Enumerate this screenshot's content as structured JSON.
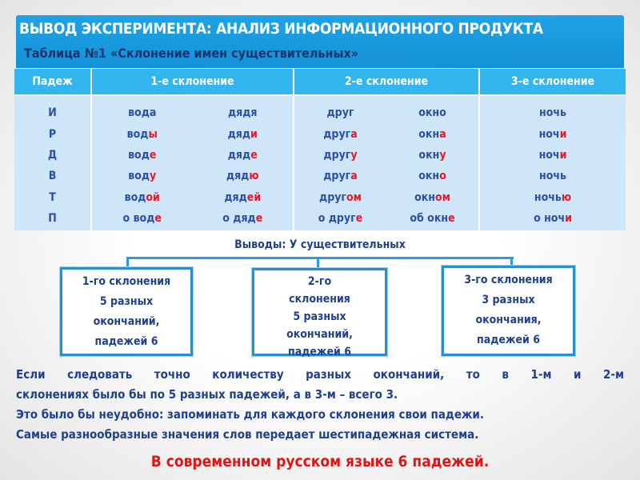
{
  "header": {
    "title": "ВЫВОД ЭКСПЕРИМЕНТА: АНАЛИЗ ИНФОРМАЦИОННОГО ПРОДУКТА",
    "subtitle": "Таблица №1 «Склонение имен существительных»"
  },
  "table": {
    "columns": [
      "Падеж",
      "1-е склонение",
      "2-е склонение",
      "3-е склонение"
    ],
    "cases": [
      "И",
      "Р",
      "Д",
      "В",
      "Т",
      "П"
    ],
    "decl1": [
      [
        {
          "s": "вода",
          "e": ""
        },
        {
          "s": "дядя",
          "e": ""
        }
      ],
      [
        {
          "s": "вод",
          "e": "ы"
        },
        {
          "s": "дяд",
          "e": "и"
        }
      ],
      [
        {
          "s": "вод",
          "e": "е"
        },
        {
          "s": "дяд",
          "e": "е"
        }
      ],
      [
        {
          "s": "вод",
          "e": "у"
        },
        {
          "s": "дяд",
          "e": "ю"
        }
      ],
      [
        {
          "s": "вод",
          "e": "ой"
        },
        {
          "s": "дяд",
          "e": "ей"
        }
      ],
      [
        {
          "s": "о вод",
          "e": "е"
        },
        {
          "s": "о дяд",
          "e": "е"
        }
      ]
    ],
    "decl2": [
      [
        {
          "s": "друг",
          "e": ""
        },
        {
          "s": "окно",
          "e": ""
        }
      ],
      [
        {
          "s": "друг",
          "e": "а"
        },
        {
          "s": "окн",
          "e": "а"
        }
      ],
      [
        {
          "s": "друг",
          "e": "у"
        },
        {
          "s": "окн",
          "e": "у"
        }
      ],
      [
        {
          "s": "друг",
          "e": "а"
        },
        {
          "s": "окн",
          "e": "о"
        }
      ],
      [
        {
          "s": "друг",
          "e": "ом"
        },
        {
          "s": "окн",
          "e": "ом"
        }
      ],
      [
        {
          "s": "о друг",
          "e": "е"
        },
        {
          "s": "об окн",
          "e": "е"
        }
      ]
    ],
    "decl3": [
      [
        {
          "s": "ночь",
          "e": ""
        }
      ],
      [
        {
          "s": "ноч",
          "e": "и"
        }
      ],
      [
        {
          "s": "ноч",
          "e": "и"
        }
      ],
      [
        {
          "s": "ночь",
          "e": ""
        }
      ],
      [
        {
          "s": "ночь",
          "e": "ю"
        }
      ],
      [
        {
          "s": "о ноч",
          "e": "и"
        }
      ]
    ]
  },
  "conclusions": {
    "title": "Выводы: У существительных",
    "boxes": [
      [
        "1-го склонения",
        "5 разных",
        "окончаний,",
        "падежей 6"
      ],
      [
        "2-го",
        "склонения",
        "5 разных",
        "окончаний,",
        "падежей 6"
      ],
      [
        "3-го склонения",
        "3 разных",
        "окончания,",
        "падежей 6"
      ]
    ]
  },
  "paragraph": [
    "Если следовать точно количеству разных окончаний, то в 1-м и 2-м",
    "склонениях было бы по 5 разных падежей, а в 3-м – всего 3.",
    "Это было бы неудобно: запоминать для каждого склонения свои падежи.",
    "Самые разнообразные значения слов передает шестипадежная система."
  ],
  "final": "В современном русском языке 6 падежей.",
  "colors": {
    "header": "#1591d6",
    "table_header": "#33b5f0",
    "table_body": "#cfe6f8",
    "ending": "#e21a2a",
    "final": "#e01414"
  }
}
